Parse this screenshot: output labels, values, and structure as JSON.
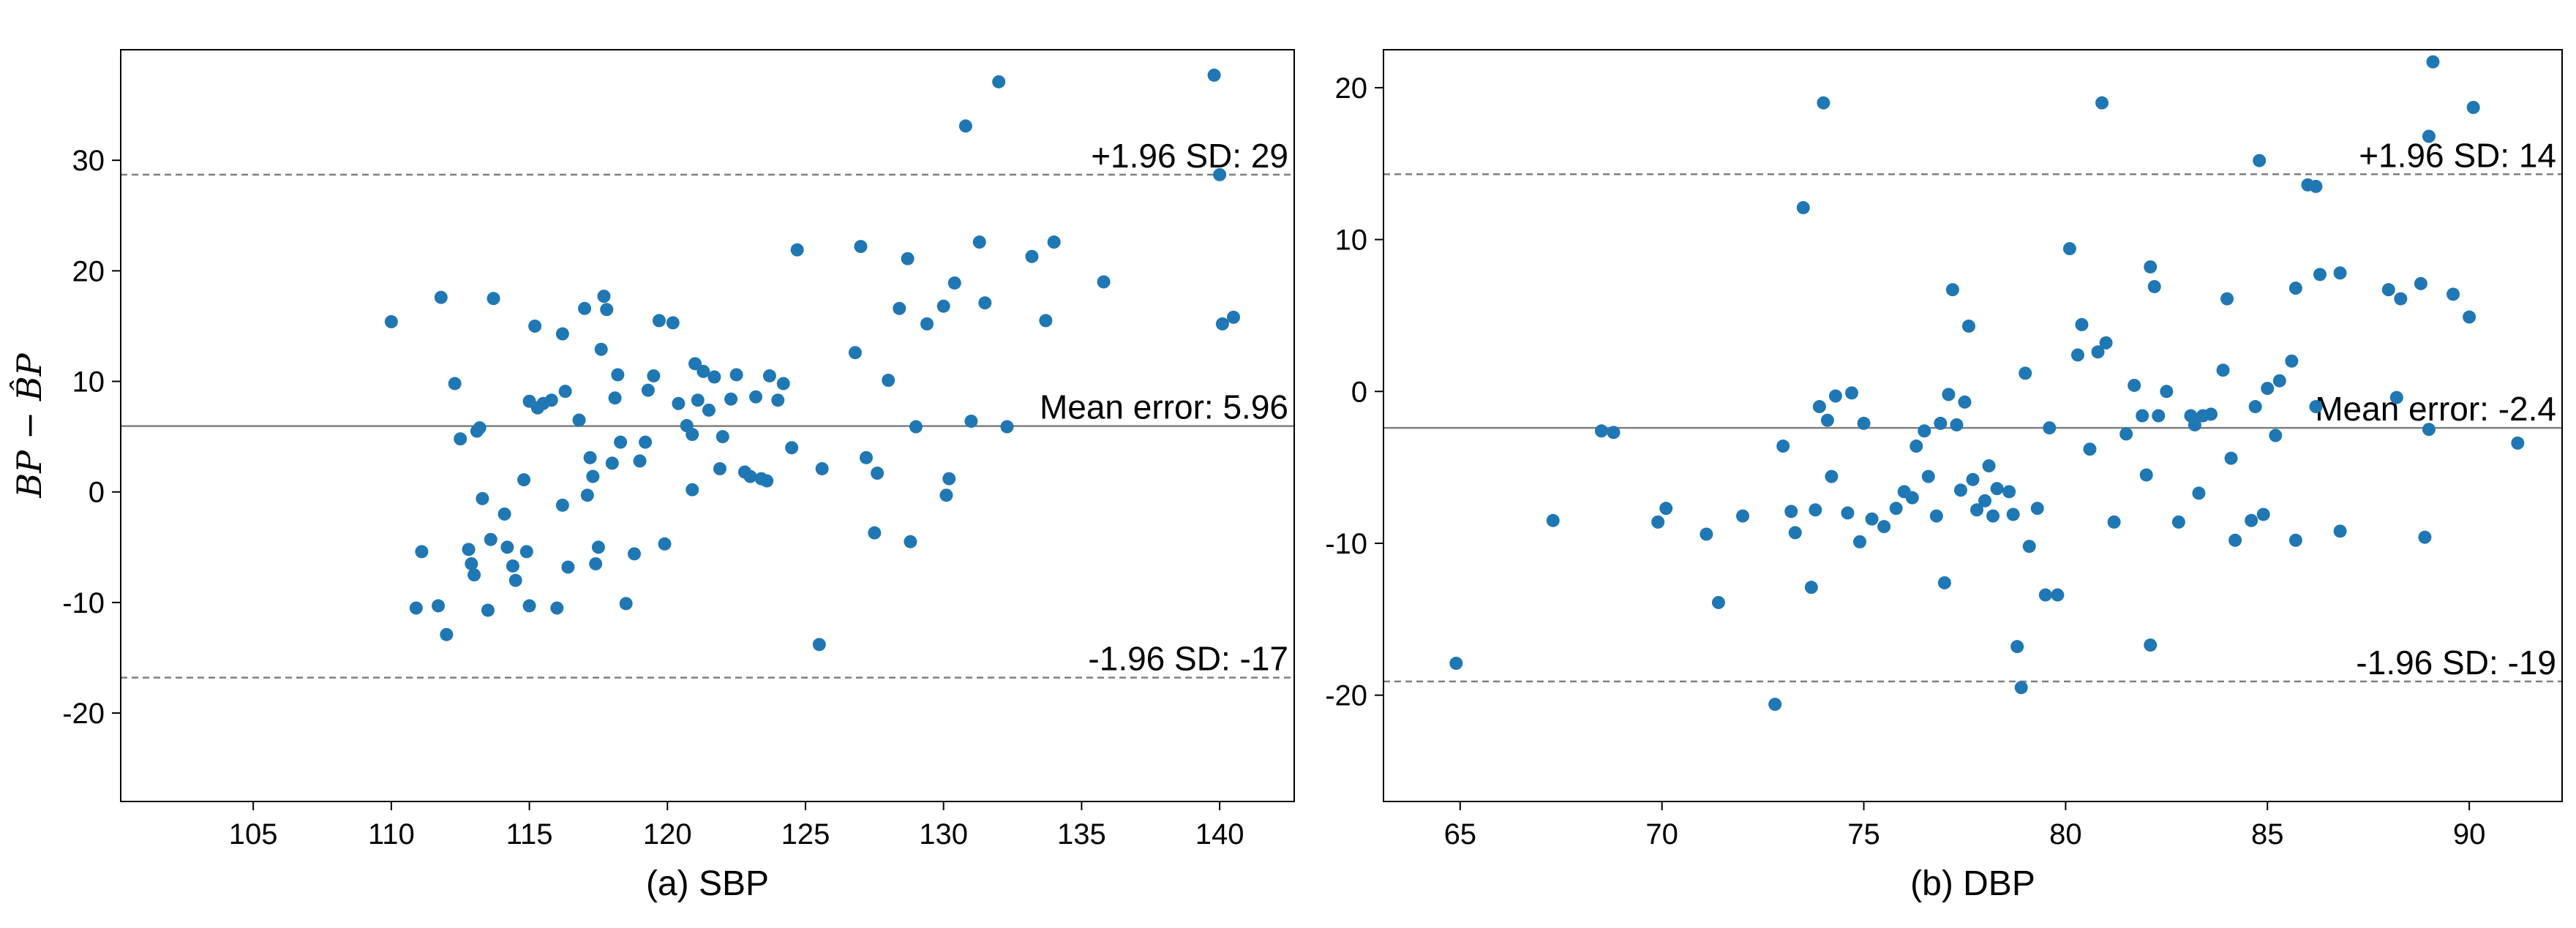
{
  "chart_data": [
    {
      "type": "scatter",
      "xlabel": "(a) SBP",
      "ylabel": "BP − B̂P",
      "xlim": [
        100.2,
        142.7
      ],
      "ylim": [
        -28.0,
        40.0
      ],
      "xticks": [
        105,
        110,
        115,
        120,
        125,
        130,
        135,
        140
      ],
      "yticks": [
        -20,
        -10,
        0,
        10,
        20,
        30
      ],
      "grid": false,
      "point_color": "#1f77b4",
      "lines": [
        {
          "key": "mean",
          "y": 5.96,
          "style": "solid",
          "label": "Mean error: 5.96"
        },
        {
          "key": "upper",
          "y": 28.7,
          "style": "dashed",
          "label": "+1.96 SD: 29"
        },
        {
          "key": "lower",
          "y": -16.8,
          "style": "dashed",
          "label": "-1.96 SD: -17"
        }
      ],
      "points": [
        [
          110.0,
          15.4
        ],
        [
          110.9,
          -10.5
        ],
        [
          111.1,
          -5.4
        ],
        [
          111.7,
          -10.3
        ],
        [
          111.8,
          17.6
        ],
        [
          112.0,
          -12.9
        ],
        [
          112.3,
          9.8
        ],
        [
          112.5,
          4.8
        ],
        [
          112.8,
          -5.2
        ],
        [
          112.9,
          -6.5
        ],
        [
          113.0,
          -7.5
        ],
        [
          113.1,
          5.5
        ],
        [
          113.2,
          5.8
        ],
        [
          113.3,
          -0.6
        ],
        [
          113.5,
          -10.7
        ],
        [
          113.6,
          -4.3
        ],
        [
          113.7,
          17.5
        ],
        [
          114.1,
          -2.0
        ],
        [
          114.2,
          -5.0
        ],
        [
          114.4,
          -6.7
        ],
        [
          114.5,
          -8.0
        ],
        [
          114.8,
          1.1
        ],
        [
          114.9,
          -5.4
        ],
        [
          115.0,
          -10.3
        ],
        [
          115.0,
          8.2
        ],
        [
          115.2,
          15.0
        ],
        [
          115.3,
          7.6
        ],
        [
          115.5,
          8.0
        ],
        [
          115.8,
          8.3
        ],
        [
          116.0,
          -10.5
        ],
        [
          116.2,
          14.3
        ],
        [
          116.2,
          -1.2
        ],
        [
          116.3,
          9.1
        ],
        [
          116.4,
          -6.8
        ],
        [
          116.8,
          6.5
        ],
        [
          117.0,
          16.6
        ],
        [
          117.1,
          -0.3
        ],
        [
          117.2,
          3.1
        ],
        [
          117.3,
          1.4
        ],
        [
          117.4,
          -6.5
        ],
        [
          117.5,
          -5.0
        ],
        [
          117.6,
          12.9
        ],
        [
          117.7,
          17.7
        ],
        [
          117.8,
          16.5
        ],
        [
          118.0,
          2.6
        ],
        [
          118.1,
          8.5
        ],
        [
          118.2,
          10.6
        ],
        [
          118.3,
          4.5
        ],
        [
          118.5,
          -10.1
        ],
        [
          118.8,
          -5.6
        ],
        [
          119.0,
          2.8
        ],
        [
          119.2,
          4.5
        ],
        [
          119.3,
          9.2
        ],
        [
          119.5,
          10.5
        ],
        [
          119.7,
          15.5
        ],
        [
          119.9,
          -4.7
        ],
        [
          120.2,
          15.3
        ],
        [
          120.4,
          8.0
        ],
        [
          120.7,
          6.0
        ],
        [
          120.9,
          5.2
        ],
        [
          120.9,
          0.2
        ],
        [
          121.0,
          11.6
        ],
        [
          121.1,
          8.3
        ],
        [
          121.3,
          10.9
        ],
        [
          121.5,
          7.4
        ],
        [
          121.7,
          10.4
        ],
        [
          121.9,
          2.1
        ],
        [
          122.0,
          5.0
        ],
        [
          122.3,
          8.4
        ],
        [
          122.5,
          10.6
        ],
        [
          122.8,
          1.8
        ],
        [
          123.0,
          1.4
        ],
        [
          123.2,
          8.6
        ],
        [
          123.4,
          1.2
        ],
        [
          123.6,
          1.0
        ],
        [
          123.7,
          10.5
        ],
        [
          124.0,
          8.3
        ],
        [
          124.2,
          9.8
        ],
        [
          124.5,
          4.0
        ],
        [
          124.7,
          21.9
        ],
        [
          125.5,
          -13.8
        ],
        [
          125.6,
          2.1
        ],
        [
          126.8,
          12.6
        ],
        [
          127.0,
          22.2
        ],
        [
          127.2,
          3.1
        ],
        [
          127.5,
          -3.7
        ],
        [
          127.6,
          1.7
        ],
        [
          128.0,
          10.1
        ],
        [
          128.4,
          16.6
        ],
        [
          128.7,
          21.1
        ],
        [
          128.8,
          -4.5
        ],
        [
          129.0,
          5.9
        ],
        [
          129.4,
          15.2
        ],
        [
          130.0,
          16.8
        ],
        [
          130.1,
          -0.3
        ],
        [
          130.2,
          1.2
        ],
        [
          130.4,
          18.9
        ],
        [
          130.8,
          33.1
        ],
        [
          131.0,
          6.4
        ],
        [
          131.3,
          22.6
        ],
        [
          131.5,
          17.1
        ],
        [
          132.0,
          37.1
        ],
        [
          132.3,
          5.9
        ],
        [
          133.2,
          21.3
        ],
        [
          133.7,
          15.5
        ],
        [
          134.0,
          22.6
        ],
        [
          135.8,
          19.0
        ],
        [
          139.8,
          37.7
        ],
        [
          140.0,
          28.7
        ],
        [
          140.1,
          15.2
        ],
        [
          140.5,
          15.8
        ]
      ]
    },
    {
      "type": "scatter",
      "xlabel": "(b) DBP",
      "ylabel": "",
      "xlim": [
        63.1,
        92.3
      ],
      "ylim": [
        -27.0,
        22.5
      ],
      "xticks": [
        65,
        70,
        75,
        80,
        85,
        90
      ],
      "yticks": [
        -20,
        -10,
        0,
        10,
        20
      ],
      "grid": false,
      "point_color": "#1f77b4",
      "lines": [
        {
          "key": "mean",
          "y": -2.4,
          "style": "solid",
          "label": "Mean error: -2.4"
        },
        {
          "key": "upper",
          "y": 14.3,
          "style": "dashed",
          "label": "+1.96 SD: 14"
        },
        {
          "key": "lower",
          "y": -19.1,
          "style": "dashed",
          "label": "-1.96 SD: -19"
        }
      ],
      "points": [
        [
          64.9,
          -17.9
        ],
        [
          67.3,
          -8.5
        ],
        [
          68.5,
          -2.6
        ],
        [
          68.8,
          -2.7
        ],
        [
          69.9,
          -8.6
        ],
        [
          70.1,
          -7.7
        ],
        [
          71.1,
          -9.4
        ],
        [
          71.4,
          -13.9
        ],
        [
          72.0,
          -8.2
        ],
        [
          72.8,
          -20.6
        ],
        [
          73.0,
          -3.6
        ],
        [
          73.2,
          -7.9
        ],
        [
          73.3,
          -9.3
        ],
        [
          73.5,
          12.1
        ],
        [
          73.7,
          -12.9
        ],
        [
          73.8,
          -7.8
        ],
        [
          73.9,
          -1.0
        ],
        [
          74.0,
          19.0
        ],
        [
          74.1,
          -1.9
        ],
        [
          74.2,
          -5.6
        ],
        [
          74.3,
          -0.3
        ],
        [
          74.6,
          -8.0
        ],
        [
          74.7,
          -0.1
        ],
        [
          74.9,
          -9.9
        ],
        [
          75.0,
          -2.1
        ],
        [
          75.2,
          -8.4
        ],
        [
          75.5,
          -8.9
        ],
        [
          75.8,
          -7.7
        ],
        [
          76.0,
          -6.6
        ],
        [
          76.2,
          -7.0
        ],
        [
          76.3,
          -3.6
        ],
        [
          76.5,
          -2.6
        ],
        [
          76.6,
          -5.6
        ],
        [
          76.8,
          -8.2
        ],
        [
          76.9,
          -2.1
        ],
        [
          77.0,
          -12.6
        ],
        [
          77.1,
          -0.2
        ],
        [
          77.2,
          6.7
        ],
        [
          77.3,
          -2.2
        ],
        [
          77.4,
          -6.5
        ],
        [
          77.5,
          -0.7
        ],
        [
          77.6,
          4.3
        ],
        [
          77.7,
          -5.8
        ],
        [
          77.8,
          -7.8
        ],
        [
          78.0,
          -7.2
        ],
        [
          78.1,
          -4.9
        ],
        [
          78.2,
          -8.2
        ],
        [
          78.3,
          -6.4
        ],
        [
          78.6,
          -6.6
        ],
        [
          78.7,
          -8.1
        ],
        [
          78.8,
          -16.8
        ],
        [
          78.9,
          -19.5
        ],
        [
          79.0,
          1.2
        ],
        [
          79.1,
          -10.2
        ],
        [
          79.3,
          -7.7
        ],
        [
          79.5,
          -13.4
        ],
        [
          79.6,
          -2.4
        ],
        [
          79.8,
          -13.4
        ],
        [
          80.1,
          9.4
        ],
        [
          80.3,
          2.4
        ],
        [
          80.4,
          4.4
        ],
        [
          80.6,
          -3.8
        ],
        [
          80.8,
          2.6
        ],
        [
          80.9,
          19.0
        ],
        [
          81.0,
          3.2
        ],
        [
          81.2,
          -8.6
        ],
        [
          81.5,
          -2.8
        ],
        [
          81.7,
          0.4
        ],
        [
          81.9,
          -1.6
        ],
        [
          82.0,
          -5.5
        ],
        [
          82.1,
          -16.7
        ],
        [
          82.1,
          8.2
        ],
        [
          82.2,
          6.9
        ],
        [
          82.3,
          -1.6
        ],
        [
          82.5,
          0.0
        ],
        [
          82.8,
          -8.6
        ],
        [
          83.1,
          -1.6
        ],
        [
          83.2,
          -2.2
        ],
        [
          83.3,
          -6.7
        ],
        [
          83.4,
          -1.6
        ],
        [
          83.6,
          -1.5
        ],
        [
          83.9,
          1.4
        ],
        [
          84.0,
          6.1
        ],
        [
          84.1,
          -4.4
        ],
        [
          84.2,
          -9.8
        ],
        [
          84.6,
          -8.5
        ],
        [
          84.7,
          -1.0
        ],
        [
          84.8,
          15.2
        ],
        [
          84.9,
          -8.1
        ],
        [
          85.0,
          0.2
        ],
        [
          85.2,
          -2.9
        ],
        [
          85.3,
          0.7
        ],
        [
          85.6,
          2.0
        ],
        [
          85.7,
          -9.8
        ],
        [
          85.7,
          6.8
        ],
        [
          86.0,
          13.6
        ],
        [
          86.2,
          13.5
        ],
        [
          86.2,
          -1.0
        ],
        [
          86.3,
          7.7
        ],
        [
          86.8,
          -9.2
        ],
        [
          86.8,
          7.8
        ],
        [
          88.0,
          6.7
        ],
        [
          88.2,
          -0.4
        ],
        [
          88.3,
          6.1
        ],
        [
          88.8,
          7.1
        ],
        [
          88.9,
          -9.6
        ],
        [
          89.0,
          -2.5
        ],
        [
          89.0,
          16.8
        ],
        [
          89.1,
          21.7
        ],
        [
          89.6,
          6.4
        ],
        [
          90.0,
          4.9
        ],
        [
          90.1,
          18.7
        ],
        [
          91.2,
          -3.4
        ]
      ]
    }
  ]
}
